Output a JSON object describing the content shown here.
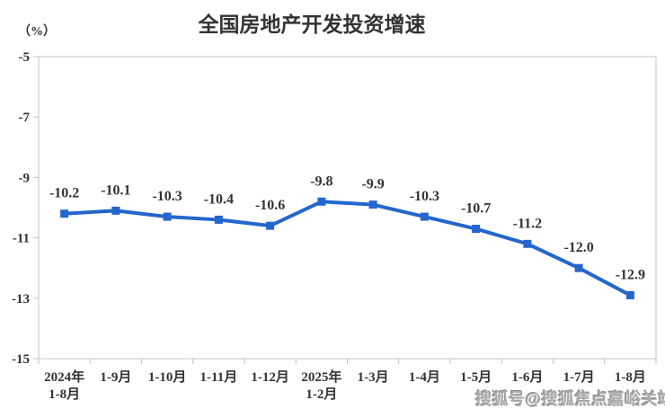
{
  "title": "全国房地产开发投资增速",
  "y_axis_unit": "（%）",
  "watermark": "搜狐号@搜狐焦点嘉峪关站",
  "chart_data": {
    "type": "line",
    "title": "全国房地产开发投资增速",
    "xlabel": "",
    "ylabel": "（%）",
    "categories": [
      "2024年\n1-8月",
      "1-9月",
      "1-10月",
      "1-11月",
      "1-12月",
      "2025年\n1-2月",
      "1-3月",
      "1-4月",
      "1-5月",
      "1-6月",
      "1-7月",
      "1-8月"
    ],
    "values": [
      -10.2,
      -10.1,
      -10.3,
      -10.4,
      -10.6,
      -9.8,
      -9.9,
      -10.3,
      -10.7,
      -11.2,
      -12.0,
      -12.9
    ],
    "value_labels": [
      "-10.2",
      "-10.1",
      "-10.3",
      "-10.4",
      "-10.6",
      "-9.8",
      "-9.9",
      "-10.3",
      "-10.7",
      "-11.2",
      "-12.0",
      "-12.9"
    ],
    "ylim": [
      -15,
      -5
    ],
    "yticks": [
      -5,
      -7,
      -9,
      -11,
      -13,
      -15
    ],
    "grid": false,
    "legend": "none",
    "marker": "square",
    "line_color": "#2566cd",
    "text_color": "#333333",
    "border_color": "#c3c3c3"
  }
}
